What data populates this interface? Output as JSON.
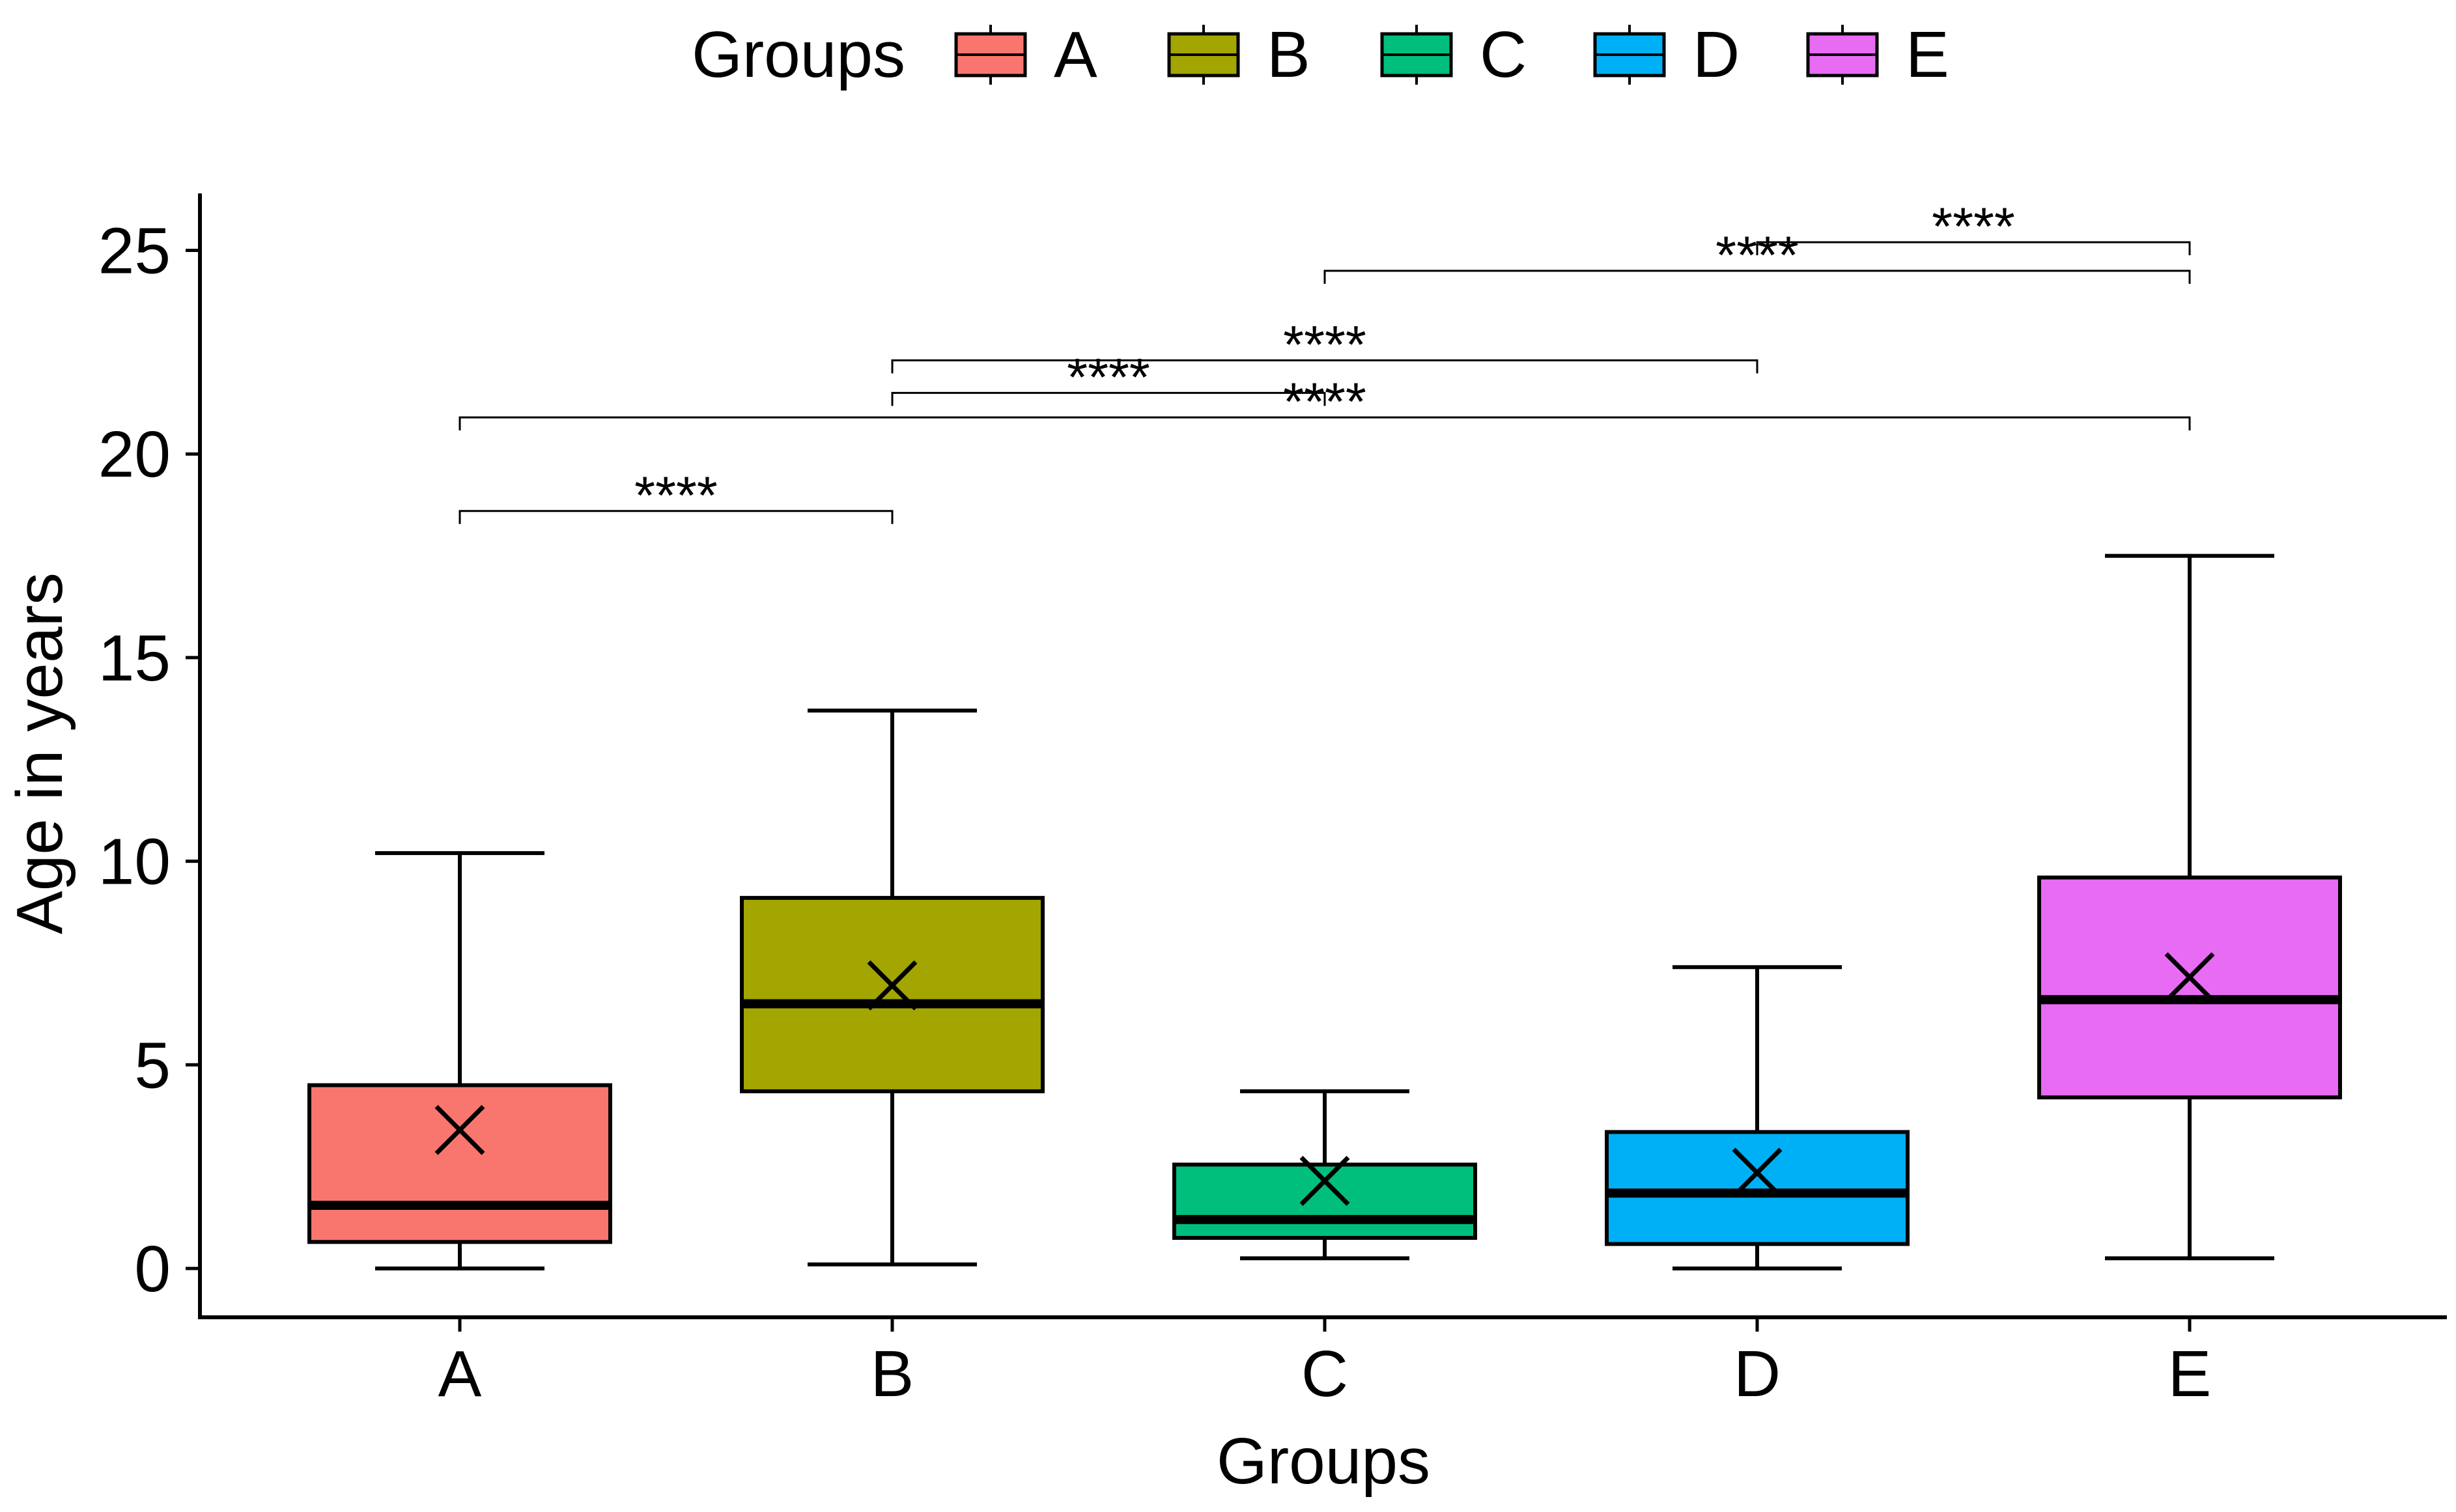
{
  "chart_data": {
    "type": "boxplot",
    "title": "",
    "xlabel": "Groups",
    "ylabel": "Age in years",
    "ylim": [
      -1.2,
      26.4
    ],
    "yticks": [
      0,
      5,
      10,
      15,
      20,
      25
    ],
    "ytick_labels": [
      "0",
      "5",
      "10",
      "15",
      "20",
      "25"
    ],
    "grid": false,
    "legend": {
      "title": "Groups",
      "position": "top",
      "entries": [
        "A",
        "B",
        "C",
        "D",
        "E"
      ]
    },
    "categories": [
      "A",
      "B",
      "C",
      "D",
      "E"
    ],
    "colors": [
      "#F8766D",
      "#A3A500",
      "#00BF7D",
      "#00B0F6",
      "#E76BF3"
    ],
    "boxes": [
      {
        "group": "A",
        "whisker_low": 0.0,
        "q1": 0.65,
        "median": 1.55,
        "q3": 4.5,
        "whisker_high": 10.2,
        "mean": 3.4
      },
      {
        "group": "B",
        "whisker_low": 0.1,
        "q1": 4.35,
        "median": 6.5,
        "q3": 9.1,
        "whisker_high": 13.7,
        "mean": 6.95
      },
      {
        "group": "C",
        "whisker_low": 0.25,
        "q1": 0.75,
        "median": 1.2,
        "q3": 2.55,
        "whisker_high": 4.35,
        "mean": 2.15
      },
      {
        "group": "D",
        "whisker_low": 0.0,
        "q1": 0.6,
        "median": 1.85,
        "q3": 3.35,
        "whisker_high": 7.4,
        "mean": 2.35
      },
      {
        "group": "E",
        "whisker_low": 0.25,
        "q1": 4.2,
        "median": 6.6,
        "q3": 9.6,
        "whisker_high": 17.5,
        "mean": 7.15
      }
    ],
    "comparisons": [
      {
        "from": "A",
        "to": "B",
        "y": 18.6,
        "label": "****"
      },
      {
        "from": "A",
        "to": "E",
        "y": 20.9,
        "label": "****"
      },
      {
        "from": "B",
        "to": "C",
        "y": 21.5,
        "label": "****"
      },
      {
        "from": "B",
        "to": "D",
        "y": 22.3,
        "label": "****"
      },
      {
        "from": "C",
        "to": "E",
        "y": 24.5,
        "label": "****"
      },
      {
        "from": "D",
        "to": "E",
        "y": 25.2,
        "label": "****"
      }
    ]
  }
}
